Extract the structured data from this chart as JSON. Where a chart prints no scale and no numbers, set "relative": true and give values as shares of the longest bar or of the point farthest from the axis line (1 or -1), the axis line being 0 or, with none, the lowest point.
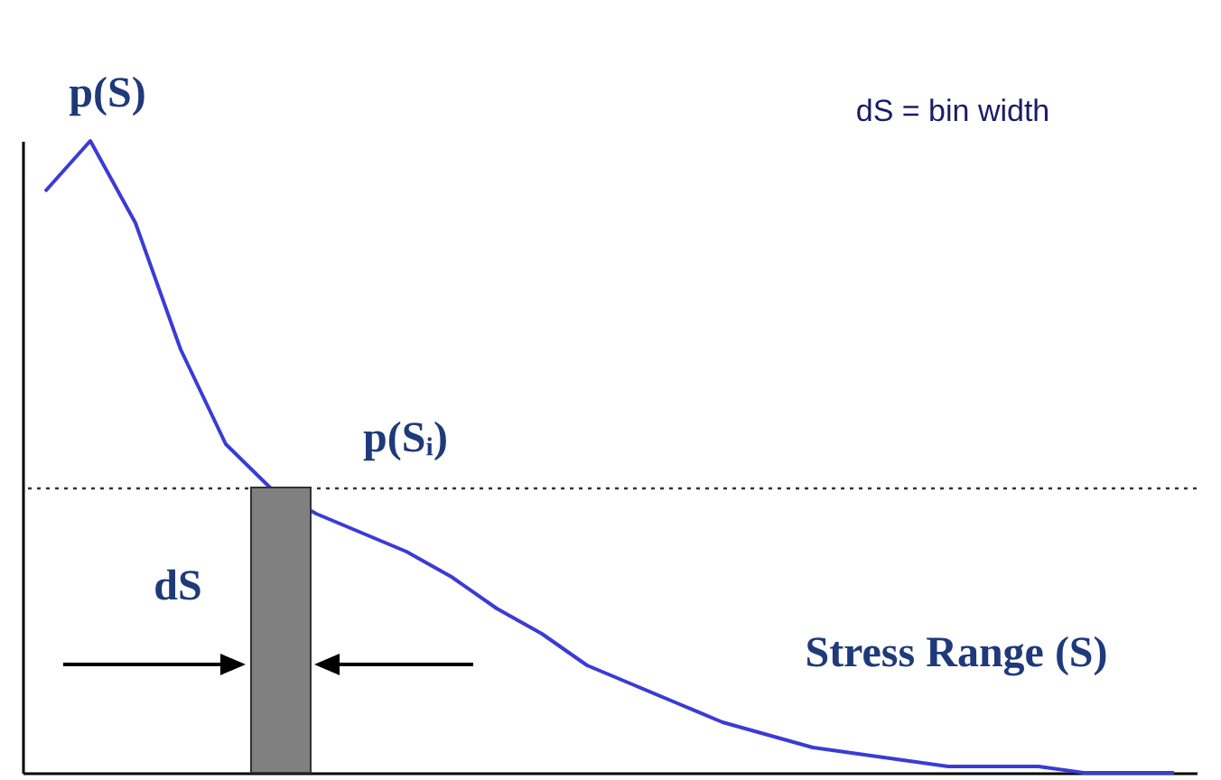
{
  "chart_data": {
    "type": "line",
    "relative": true,
    "categories": [
      null,
      null,
      null,
      null,
      null,
      null,
      null,
      null,
      null,
      null,
      null,
      null,
      null,
      null,
      null,
      null,
      null,
      null,
      null,
      null,
      null,
      null,
      null,
      null,
      null,
      null
    ],
    "series": [
      {
        "color": "#3b3bd6",
        "values": [
          0.92,
          1.0,
          0.87,
          0.67,
          0.52,
          0.45,
          0.41,
          0.38,
          0.35,
          0.31,
          0.26,
          0.22,
          0.17,
          0.14,
          0.11,
          0.08,
          0.06,
          0.04,
          0.03,
          0.02,
          0.01,
          0.01,
          0.01,
          0.0,
          0.0,
          0.0
        ]
      }
    ],
    "ref_lines": [
      {
        "axis": "y",
        "value": 0.45,
        "line_style": "dotted",
        "color": "#333333"
      }
    ],
    "annotations": [
      "p(S)",
      "dS = bin width",
      "p(Sᵢ)",
      "dS",
      "Stress Range (S)"
    ]
  }
}
